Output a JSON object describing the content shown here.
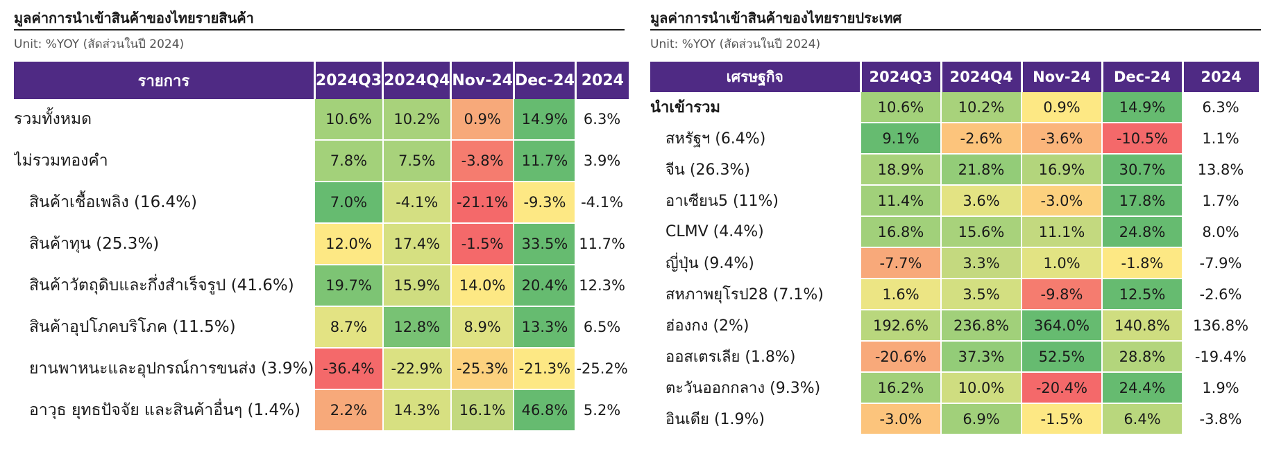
{
  "left": {
    "title": "มูลค่าการนำเข้าสินค้าของไทยรายสินค้า",
    "unit": "Unit: %YOY (สัดส่วนในปี 2024)",
    "headers": [
      "รายการ",
      "2024Q3",
      "2024Q4",
      "Nov-24",
      "Dec-24",
      "2024"
    ],
    "rows": [
      {
        "label": "รวมทั้งหมด",
        "indent": false,
        "values": [
          "10.6%",
          "10.2%",
          "0.9%",
          "14.9%",
          "6.3%"
        ],
        "colors": [
          "#a3d17a",
          "#a8d27b",
          "#f7a97a",
          "#66bb70"
        ]
      },
      {
        "label": "ไม่รวมทองคำ",
        "indent": false,
        "values": [
          "7.8%",
          "7.5%",
          "-3.8%",
          "11.7%",
          "3.9%"
        ],
        "colors": [
          "#a3d17a",
          "#a8d27b",
          "#f57c6f",
          "#66bb70"
        ]
      },
      {
        "label": "สินค้าเชื้อเพลิง (16.4%)",
        "indent": true,
        "values": [
          "7.0%",
          "-4.1%",
          "-21.1%",
          "-9.3%",
          "-4.1%"
        ],
        "colors": [
          "#66bb70",
          "#d4df82",
          "#f4696a",
          "#fde884"
        ]
      },
      {
        "label": "สินค้าทุน (25.3%)",
        "indent": true,
        "values": [
          "12.0%",
          "17.4%",
          "-1.5%",
          "33.5%",
          "11.7%"
        ],
        "colors": [
          "#fde884",
          "#d6e081",
          "#f4696a",
          "#66bb70"
        ]
      },
      {
        "label": "สินค้าวัตถุดิบและกึ่งสำเร็จรูป (41.6%)",
        "indent": true,
        "values": [
          "19.7%",
          "15.9%",
          "14.0%",
          "20.4%",
          "12.3%"
        ],
        "colors": [
          "#7dc474",
          "#cfdd80",
          "#fde884",
          "#66bb70"
        ]
      },
      {
        "label": "สินค้าอุปโภคบริโภค (11.5%)",
        "indent": true,
        "values": [
          "8.7%",
          "12.8%",
          "8.9%",
          "13.3%",
          "6.5%"
        ],
        "colors": [
          "#e3e383",
          "#78c274",
          "#dfe283",
          "#66bb70"
        ]
      },
      {
        "label": "ยานพาหนะและอุปกรณ์การขนส่ง (3.9%)",
        "indent": true,
        "values": [
          "-36.4%",
          "-22.9%",
          "-25.3%",
          "-21.3%",
          "-25.2%"
        ],
        "colors": [
          "#f4696a",
          "#dbe182",
          "#fcd17e",
          "#fde884"
        ]
      },
      {
        "label": "อาวุธ ยุทธปัจจัย และสินค้าอื่นๆ (1.4%)",
        "indent": true,
        "values": [
          "2.2%",
          "14.3%",
          "16.1%",
          "46.8%",
          "5.2%"
        ],
        "colors": [
          "#f7a97a",
          "#d7e081",
          "#c3d97f",
          "#66bb70"
        ]
      }
    ]
  },
  "right": {
    "title": "มูลค่าการนำเข้าสินค้าของไทยรายประเทศ",
    "unit": "Unit: %YOY (สัดส่วนในปี 2024)",
    "headers": [
      "เศรษฐกิจ",
      "2024Q3",
      "2024Q4",
      "Nov-24",
      "Dec-24",
      "2024"
    ],
    "rows": [
      {
        "label": "นำเข้ารวม",
        "bold": true,
        "values": [
          "10.6%",
          "10.2%",
          "0.9%",
          "14.9%",
          "6.3%"
        ],
        "colors": [
          "#a3d17a",
          "#a8d27b",
          "#fde884",
          "#66bb70"
        ]
      },
      {
        "label": "สหรัฐฯ (6.4%)",
        "indent": true,
        "values": [
          "9.1%",
          "-2.6%",
          "-3.6%",
          "-10.5%",
          "1.1%"
        ],
        "colors": [
          "#66bb70",
          "#fcc47c",
          "#fbb57b",
          "#f4696a"
        ]
      },
      {
        "label": "จีน (26.3%)",
        "indent": true,
        "values": [
          "18.9%",
          "21.8%",
          "16.9%",
          "30.7%",
          "13.8%"
        ],
        "colors": [
          "#a8d27b",
          "#93cc78",
          "#b3d57c",
          "#66bb70"
        ]
      },
      {
        "label": "อาเซียน5 (11%)",
        "indent": true,
        "values": [
          "11.4%",
          "3.6%",
          "-3.0%",
          "17.8%",
          "1.7%"
        ],
        "colors": [
          "#a1d07a",
          "#e3e383",
          "#fcd17e",
          "#66bb70"
        ]
      },
      {
        "label": "CLMV (4.4%)",
        "indent": true,
        "values": [
          "16.8%",
          "15.6%",
          "11.1%",
          "24.8%",
          "8.0%"
        ],
        "colors": [
          "#a1d07a",
          "#a8d27b",
          "#c3d97f",
          "#66bb70"
        ]
      },
      {
        "label": "ญี่ปุ่น (9.4%)",
        "indent": true,
        "values": [
          "-7.7%",
          "3.3%",
          "1.0%",
          "-1.8%",
          "-7.9%"
        ],
        "colors": [
          "#f8a97a",
          "#c4d97f",
          "#e2e383",
          "#fde884"
        ]
      },
      {
        "label": "สหภาพยุโรป28 (7.1%)",
        "indent": true,
        "values": [
          "1.6%",
          "3.5%",
          "-9.8%",
          "12.5%",
          "-2.6%"
        ],
        "colors": [
          "#ece584",
          "#d3df81",
          "#f57c6f",
          "#66bb70"
        ]
      },
      {
        "label": "ฮ่องกง (2%)",
        "indent": true,
        "values": [
          "192.6%",
          "236.8%",
          "364.0%",
          "140.8%",
          "136.8%"
        ],
        "colors": [
          "#b9d77d",
          "#a1d07a",
          "#66bb70",
          "#cfdd80"
        ]
      },
      {
        "label": "ออสเตรเลีย (1.8%)",
        "indent": true,
        "values": [
          "-20.6%",
          "37.3%",
          "52.5%",
          "28.8%",
          "-19.4%"
        ],
        "colors": [
          "#f8a97a",
          "#93cc78",
          "#66bb70",
          "#b3d57c"
        ]
      },
      {
        "label": "ตะวันออกกลาง (9.3%)",
        "indent": true,
        "values": [
          "16.2%",
          "10.0%",
          "-20.4%",
          "24.4%",
          "1.9%"
        ],
        "colors": [
          "#a1d07a",
          "#cfdd80",
          "#f4696a",
          "#66bb70"
        ]
      },
      {
        "label": "อินเดีย (1.9%)",
        "indent": true,
        "values": [
          "-3.0%",
          "6.9%",
          "-1.5%",
          "6.4%",
          "-3.8%"
        ],
        "colors": [
          "#fcc47c",
          "#a1d07a",
          "#fde884",
          "#b9d77d"
        ]
      }
    ]
  }
}
